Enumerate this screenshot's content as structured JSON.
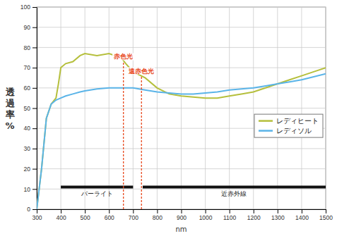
{
  "chart_data": {
    "type": "line",
    "x_label": "nm",
    "y_label": "透過率%",
    "x": [
      300,
      320,
      340,
      360,
      380,
      390,
      400,
      420,
      450,
      480,
      500,
      550,
      600,
      650,
      670,
      700,
      750,
      800,
      850,
      900,
      950,
      1000,
      1050,
      1100,
      1150,
      1200,
      1250,
      1300,
      1350,
      1400,
      1450,
      1500
    ],
    "series": [
      {
        "name": "レディヒート",
        "color": "#b5bf3c",
        "values": [
          0,
          20,
          45,
          52,
          55,
          62,
          70,
          72,
          73,
          76,
          77,
          76,
          77,
          75,
          72,
          68,
          65,
          60,
          57,
          56,
          55.5,
          55,
          55,
          56,
          57,
          58,
          60,
          62,
          64,
          66,
          68,
          70
        ]
      },
      {
        "name": "レディソル",
        "color": "#5ab4e8",
        "values": [
          0,
          20,
          45,
          52,
          54,
          54.5,
          55,
          56,
          57,
          58,
          58.5,
          59.5,
          60,
          60,
          60,
          60,
          59,
          58,
          57.5,
          57,
          57,
          57.5,
          58,
          59,
          59.5,
          60,
          61,
          62,
          63,
          64,
          65.5,
          67
        ]
      }
    ],
    "annotations": [
      {
        "text": "赤色光",
        "x": 660,
        "y": 73,
        "color": "#e8481c"
      },
      {
        "text": "遠赤色光",
        "x": 735,
        "y": 66,
        "color": "#e8481c"
      }
    ],
    "bands": [
      {
        "label": "パーライト",
        "x0": 400,
        "x1": 700,
        "y": 11
      },
      {
        "label": "近赤外線",
        "x0": 740,
        "x1": 1500,
        "y": 11
      }
    ],
    "xlim": [
      300,
      1500
    ],
    "ylim": [
      0,
      100
    ],
    "xticks": [
      300,
      400,
      500,
      600,
      700,
      800,
      900,
      1000,
      1100,
      1200,
      1300,
      1400,
      1500
    ],
    "yticks": [
      0,
      10,
      20,
      30,
      40,
      50,
      60,
      70,
      80,
      90,
      100
    ],
    "grid": true,
    "legend": "right"
  }
}
